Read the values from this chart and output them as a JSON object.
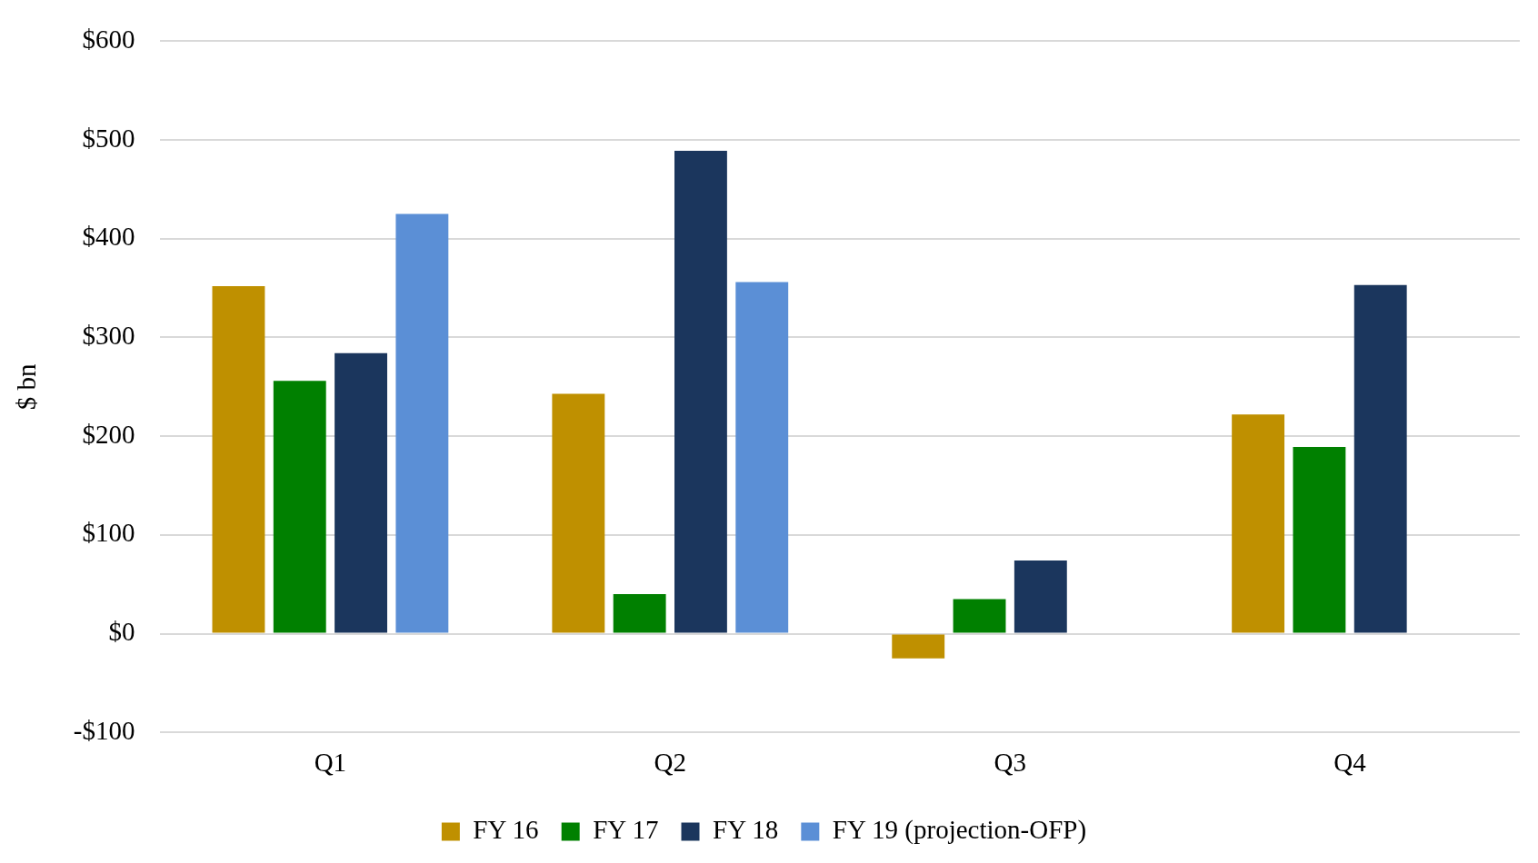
{
  "chart_data": {
    "type": "bar",
    "ylabel": "$ bn",
    "categories": [
      "Q1",
      "Q2",
      "Q3",
      "Q4"
    ],
    "series": [
      {
        "name": "FY 16",
        "color": "#bf9000",
        "values": [
          352,
          243,
          -25,
          222
        ]
      },
      {
        "name": "FY 17",
        "color": "#008000",
        "values": [
          256,
          40,
          35,
          189
        ]
      },
      {
        "name": "FY 18",
        "color": "#1b365d",
        "values": [
          284,
          489,
          74,
          353
        ]
      },
      {
        "name": "FY 19 (projection-OFP)",
        "color": "#5b8fd6",
        "values": [
          425,
          356,
          null,
          null
        ]
      }
    ],
    "ylim": [
      -100,
      600
    ],
    "yticks": [
      {
        "value": -100,
        "label": "-$100"
      },
      {
        "value": 0,
        "label": "$0"
      },
      {
        "value": 100,
        "label": "$100"
      },
      {
        "value": 200,
        "label": "$200"
      },
      {
        "value": 300,
        "label": "$300"
      },
      {
        "value": 400,
        "label": "$400"
      },
      {
        "value": 500,
        "label": "$500"
      },
      {
        "value": 600,
        "label": "$600"
      }
    ],
    "grid": "y",
    "legend": "bottom"
  }
}
